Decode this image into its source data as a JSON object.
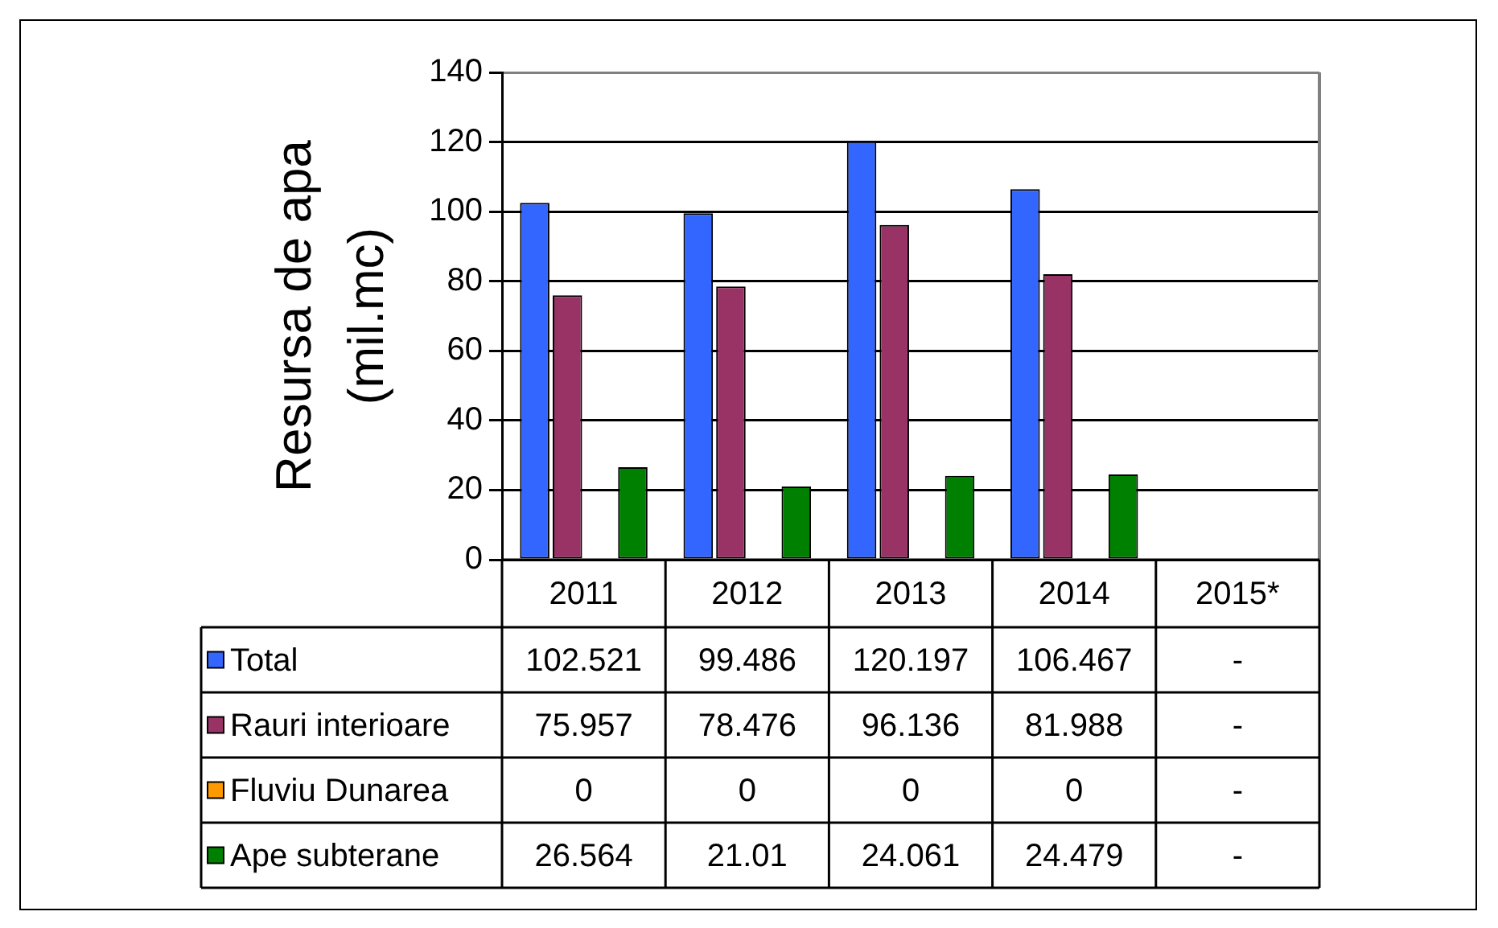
{
  "chart_data": {
    "type": "bar",
    "ylabel": "Resursa de apa (mil.mc)",
    "categories": [
      "2011",
      "2012",
      "2013",
      "2014",
      "2015*"
    ],
    "series": [
      {
        "name": "Total",
        "color": "#3366ff",
        "values": [
          102.521,
          99.486,
          120.197,
          106.467,
          null
        ],
        "value_labels": [
          "102.521",
          "99.486",
          "120.197",
          "106.467",
          "-"
        ]
      },
      {
        "name": "Rauri interioare",
        "color": "#993366",
        "values": [
          75.957,
          78.476,
          96.136,
          81.988,
          null
        ],
        "value_labels": [
          "75.957",
          "78.476",
          "96.136",
          "81.988",
          "-"
        ]
      },
      {
        "name": "Fluviu Dunarea",
        "color": "#ff9900",
        "values": [
          0,
          0,
          0,
          0,
          null
        ],
        "value_labels": [
          "0",
          "0",
          "0",
          "0",
          "-"
        ]
      },
      {
        "name": "Ape subterane",
        "color": "#008000",
        "values": [
          26.564,
          21.01,
          24.061,
          24.479,
          null
        ],
        "value_labels": [
          "26.564",
          "21.01",
          "24.061",
          "24.479",
          "-"
        ]
      }
    ],
    "ylim": [
      0,
      140
    ],
    "yticks": [
      0,
      20,
      40,
      60,
      80,
      100,
      120,
      140
    ],
    "grid": "y",
    "legend": "bottom"
  }
}
